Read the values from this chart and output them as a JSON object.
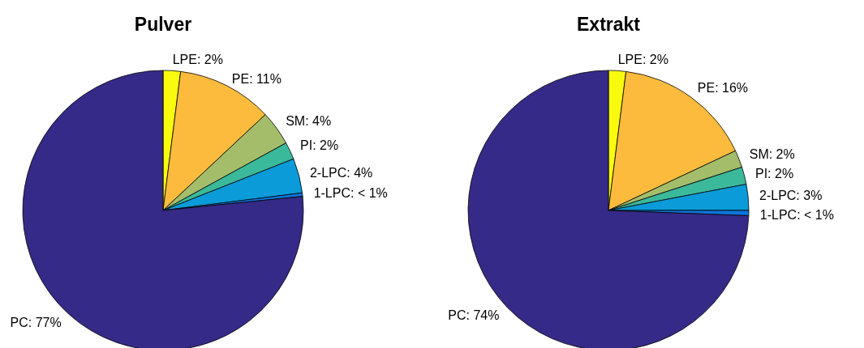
{
  "chart_data": [
    {
      "type": "pie",
      "title": "Pulver",
      "categories": [
        "LPE",
        "PE",
        "SM",
        "PI",
        "2-LPC",
        "1-LPC",
        "PC"
      ],
      "values": [
        2,
        11,
        4,
        2,
        4,
        0.4,
        76.6
      ],
      "value_labels": [
        "2%",
        "11%",
        "4%",
        "2%",
        "4%",
        "< 1%",
        "77%"
      ],
      "colors": [
        "#f9fb0e",
        "#fcbb3d",
        "#a3bd6a",
        "#3bb99b",
        "#0b9bd8",
        "#0d75dc",
        "#352a87"
      ]
    },
    {
      "type": "pie",
      "title": "Extrakt",
      "categories": [
        "LPE",
        "PE",
        "SM",
        "PI",
        "2-LPC",
        "1-LPC",
        "PC"
      ],
      "values": [
        2,
        16,
        2,
        2,
        3,
        0.6,
        74.4
      ],
      "value_labels": [
        "2%",
        "16%",
        "2%",
        "2%",
        "3%",
        "< 1%",
        "74%"
      ],
      "colors": [
        "#f9fb0e",
        "#fcbb3d",
        "#a3bd6a",
        "#3bb99b",
        "#0b9bd8",
        "#0d75dc",
        "#352a87"
      ]
    }
  ]
}
